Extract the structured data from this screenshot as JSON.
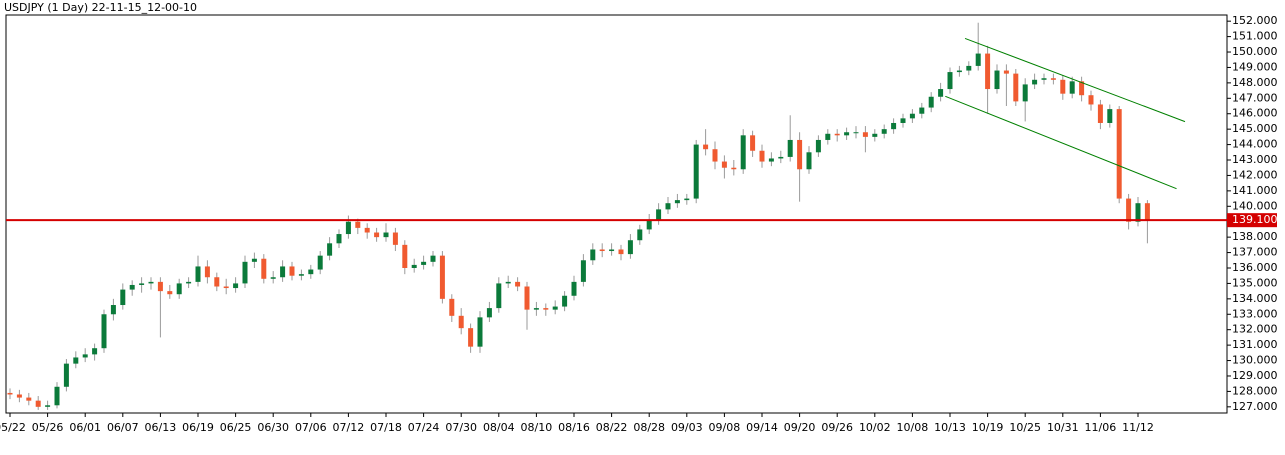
{
  "chart_data": {
    "type": "candlestick",
    "title": "USDJPY (1 Day) 22-11-15_12-00-10",
    "up_color": "#0b7a3a",
    "down_color": "#f05a30",
    "wick_color": "#9a9a9a",
    "categories": [
      "05/22",
      null,
      null,
      null,
      "05/26",
      null,
      null,
      null,
      "06/01",
      null,
      null,
      null,
      "06/07",
      null,
      null,
      null,
      "06/13",
      null,
      null,
      null,
      "06/19",
      null,
      null,
      null,
      "06/25",
      null,
      null,
      null,
      "06/30",
      null,
      null,
      null,
      "07/06",
      null,
      null,
      null,
      "07/12",
      null,
      null,
      null,
      "07/18",
      null,
      null,
      null,
      "07/24",
      null,
      null,
      null,
      "07/30",
      null,
      null,
      null,
      "08/04",
      null,
      null,
      null,
      "08/10",
      null,
      null,
      null,
      "08/16",
      null,
      null,
      null,
      "08/22",
      null,
      null,
      null,
      "08/28",
      null,
      null,
      null,
      "09/03",
      null,
      null,
      null,
      "09/08",
      null,
      null,
      null,
      "09/14",
      null,
      null,
      null,
      "09/20",
      null,
      null,
      null,
      "09/26",
      null,
      null,
      null,
      "10/02",
      null,
      null,
      null,
      "10/08",
      null,
      null,
      null,
      "10/13",
      null,
      null,
      null,
      "10/19",
      null,
      null,
      null,
      "10/25",
      null,
      null,
      null,
      "10/31",
      null,
      null,
      null,
      "11/06",
      null,
      null,
      null,
      "11/12",
      null
    ],
    "ohlc": [
      [
        127.9,
        128.2,
        127.5,
        127.8
      ],
      [
        127.8,
        128.1,
        127.3,
        127.6
      ],
      [
        127.6,
        127.9,
        127.1,
        127.4
      ],
      [
        127.4,
        127.7,
        126.8,
        127.0
      ],
      [
        127.0,
        127.4,
        126.8,
        127.1
      ],
      [
        127.1,
        128.6,
        126.9,
        128.3
      ],
      [
        128.3,
        130.1,
        128.0,
        129.8
      ],
      [
        129.8,
        130.6,
        129.5,
        130.2
      ],
      [
        130.2,
        130.8,
        129.9,
        130.4
      ],
      [
        130.4,
        131.1,
        130.0,
        130.8
      ],
      [
        130.8,
        133.3,
        130.5,
        133.0
      ],
      [
        133.0,
        134.0,
        132.6,
        133.6
      ],
      [
        133.6,
        135.0,
        133.3,
        134.6
      ],
      [
        134.6,
        135.2,
        134.2,
        134.9
      ],
      [
        134.9,
        135.4,
        134.4,
        135.0
      ],
      [
        135.0,
        135.4,
        134.6,
        135.1
      ],
      [
        135.1,
        135.4,
        131.5,
        134.5
      ],
      [
        134.5,
        134.9,
        134.0,
        134.3
      ],
      [
        134.3,
        135.3,
        134.0,
        135.0
      ],
      [
        135.0,
        135.4,
        134.7,
        135.1
      ],
      [
        135.1,
        136.8,
        134.8,
        136.1
      ],
      [
        136.1,
        136.5,
        135.0,
        135.4
      ],
      [
        135.4,
        135.7,
        134.5,
        134.8
      ],
      [
        134.8,
        135.3,
        134.3,
        134.7
      ],
      [
        134.7,
        135.4,
        134.4,
        135.0
      ],
      [
        135.0,
        136.8,
        134.7,
        136.4
      ],
      [
        136.4,
        137.0,
        136.0,
        136.6
      ],
      [
        136.6,
        136.9,
        135.0,
        135.3
      ],
      [
        135.3,
        135.8,
        135.0,
        135.4
      ],
      [
        135.4,
        136.5,
        135.1,
        136.1
      ],
      [
        136.1,
        136.4,
        135.2,
        135.5
      ],
      [
        135.5,
        135.9,
        135.2,
        135.6
      ],
      [
        135.6,
        136.2,
        135.3,
        135.9
      ],
      [
        135.9,
        137.1,
        135.6,
        136.8
      ],
      [
        136.8,
        138.0,
        136.5,
        137.6
      ],
      [
        137.6,
        138.5,
        137.3,
        138.2
      ],
      [
        138.2,
        139.4,
        137.9,
        139.0
      ],
      [
        139.0,
        139.2,
        138.2,
        138.6
      ],
      [
        138.6,
        138.9,
        137.9,
        138.3
      ],
      [
        138.3,
        138.6,
        137.7,
        138.0
      ],
      [
        138.0,
        138.9,
        137.7,
        138.3
      ],
      [
        138.3,
        138.6,
        137.1,
        137.5
      ],
      [
        137.5,
        137.8,
        135.6,
        136.0
      ],
      [
        136.0,
        136.6,
        135.7,
        136.2
      ],
      [
        136.2,
        136.8,
        135.9,
        136.4
      ],
      [
        136.4,
        137.1,
        136.1,
        136.8
      ],
      [
        136.8,
        137.1,
        133.7,
        134.0
      ],
      [
        134.0,
        134.3,
        132.5,
        132.9
      ],
      [
        132.9,
        133.4,
        131.7,
        132.1
      ],
      [
        132.1,
        132.4,
        130.5,
        130.9
      ],
      [
        130.9,
        133.2,
        130.5,
        132.8
      ],
      [
        132.8,
        133.8,
        132.5,
        133.4
      ],
      [
        133.4,
        135.4,
        133.1,
        135.0
      ],
      [
        135.0,
        135.5,
        134.7,
        135.1
      ],
      [
        135.1,
        135.4,
        134.5,
        134.8
      ],
      [
        134.8,
        135.1,
        132.0,
        133.3
      ],
      [
        133.3,
        133.8,
        132.9,
        133.4
      ],
      [
        133.4,
        133.7,
        132.9,
        133.3
      ],
      [
        133.3,
        133.9,
        133.0,
        133.5
      ],
      [
        133.5,
        134.5,
        133.2,
        134.2
      ],
      [
        134.2,
        135.5,
        133.9,
        135.1
      ],
      [
        135.1,
        136.9,
        134.8,
        136.5
      ],
      [
        136.5,
        137.6,
        136.2,
        137.2
      ],
      [
        137.2,
        137.6,
        136.7,
        137.1
      ],
      [
        137.1,
        137.6,
        136.8,
        137.2
      ],
      [
        137.2,
        137.5,
        136.5,
        136.9
      ],
      [
        136.9,
        138.2,
        136.6,
        137.8
      ],
      [
        137.8,
        138.8,
        137.5,
        138.5
      ],
      [
        138.5,
        139.5,
        138.2,
        139.1
      ],
      [
        139.1,
        140.2,
        138.8,
        139.8
      ],
      [
        139.8,
        140.6,
        139.5,
        140.2
      ],
      [
        140.2,
        140.8,
        139.9,
        140.4
      ],
      [
        140.4,
        140.8,
        140.1,
        140.5
      ],
      [
        140.5,
        144.3,
        140.2,
        144.0
      ],
      [
        144.0,
        145.0,
        143.3,
        143.7
      ],
      [
        143.7,
        144.2,
        142.4,
        142.9
      ],
      [
        142.9,
        143.3,
        141.8,
        142.5
      ],
      [
        142.5,
        143.0,
        142.0,
        142.4
      ],
      [
        142.4,
        145.0,
        142.1,
        144.6
      ],
      [
        144.6,
        144.9,
        143.2,
        143.6
      ],
      [
        143.6,
        144.0,
        142.5,
        142.9
      ],
      [
        142.9,
        143.5,
        142.6,
        143.1
      ],
      [
        143.1,
        143.6,
        142.8,
        143.2
      ],
      [
        143.2,
        145.9,
        142.9,
        144.3
      ],
      [
        144.3,
        144.8,
        140.3,
        142.4
      ],
      [
        142.4,
        143.9,
        142.1,
        143.5
      ],
      [
        143.5,
        144.6,
        143.2,
        144.3
      ],
      [
        144.3,
        145.0,
        144.0,
        144.7
      ],
      [
        144.7,
        145.0,
        144.2,
        144.6
      ],
      [
        144.6,
        145.1,
        144.3,
        144.8
      ],
      [
        144.8,
        145.2,
        144.4,
        144.8
      ],
      [
        144.8,
        145.2,
        143.5,
        144.5
      ],
      [
        144.5,
        145.0,
        144.2,
        144.7
      ],
      [
        144.7,
        145.3,
        144.4,
        145.0
      ],
      [
        145.0,
        145.7,
        144.7,
        145.4
      ],
      [
        145.4,
        146.0,
        145.1,
        145.7
      ],
      [
        145.7,
        146.3,
        145.4,
        146.0
      ],
      [
        146.0,
        146.7,
        145.7,
        146.4
      ],
      [
        146.4,
        147.4,
        146.1,
        147.1
      ],
      [
        147.1,
        148.0,
        146.8,
        147.6
      ],
      [
        147.6,
        149.0,
        147.3,
        148.7
      ],
      [
        148.7,
        149.1,
        148.4,
        148.8
      ],
      [
        148.8,
        149.4,
        148.5,
        149.1
      ],
      [
        149.1,
        151.9,
        148.8,
        149.9
      ],
      [
        149.9,
        150.4,
        146.0,
        147.6
      ],
      [
        147.6,
        149.2,
        147.3,
        148.8
      ],
      [
        148.8,
        149.2,
        146.5,
        148.6
      ],
      [
        148.6,
        148.9,
        146.5,
        146.8
      ],
      [
        146.8,
        148.3,
        145.5,
        147.9
      ],
      [
        147.9,
        148.6,
        147.6,
        148.2
      ],
      [
        148.2,
        148.6,
        147.9,
        148.3
      ],
      [
        148.3,
        148.6,
        147.9,
        148.2
      ],
      [
        148.2,
        148.5,
        146.9,
        147.3
      ],
      [
        147.3,
        148.4,
        147.0,
        148.1
      ],
      [
        148.1,
        148.4,
        146.8,
        147.2
      ],
      [
        147.2,
        147.5,
        146.2,
        146.6
      ],
      [
        146.6,
        146.9,
        145.0,
        145.4
      ],
      [
        145.4,
        146.6,
        145.1,
        146.3
      ],
      [
        146.3,
        146.5,
        140.2,
        140.5
      ],
      [
        140.5,
        140.8,
        138.5,
        139.0
      ],
      [
        139.0,
        140.6,
        138.7,
        140.2
      ],
      [
        140.2,
        140.4,
        137.6,
        139.1
      ]
    ],
    "ylim": [
      126.6,
      152.4
    ],
    "yticks": [
      {
        "value": 127,
        "label": "127.000"
      },
      {
        "value": 128,
        "label": "128.000"
      },
      {
        "value": 129,
        "label": "129.000"
      },
      {
        "value": 130,
        "label": "130.000"
      },
      {
        "value": 131,
        "label": "131.000"
      },
      {
        "value": 132,
        "label": "132.000"
      },
      {
        "value": 133,
        "label": "133.000"
      },
      {
        "value": 134,
        "label": "134.000"
      },
      {
        "value": 135,
        "label": "135.000"
      },
      {
        "value": 136,
        "label": "136.000"
      },
      {
        "value": 137,
        "label": "137.000"
      },
      {
        "value": 138,
        "label": "138.000"
      },
      {
        "value": 139,
        "label": "139.000"
      },
      {
        "value": 140,
        "label": "140.000"
      },
      {
        "value": 141,
        "label": "141.000"
      },
      {
        "value": 142,
        "label": "142.000"
      },
      {
        "value": 143,
        "label": "143.000"
      },
      {
        "value": 144,
        "label": "144.000"
      },
      {
        "value": 145,
        "label": "145.000"
      },
      {
        "value": 146,
        "label": "146.000"
      },
      {
        "value": 147,
        "label": "147.000"
      },
      {
        "value": 148,
        "label": "148.000"
      },
      {
        "value": 149,
        "label": "149.000"
      },
      {
        "value": 150,
        "label": "150.000"
      },
      {
        "value": 151,
        "label": "151.000"
      },
      {
        "value": 152,
        "label": "152.000"
      }
    ],
    "current_price": {
      "value": 139.1,
      "label": "139.100",
      "color": "#d40000"
    },
    "trendlines": [
      {
        "color": "#008000",
        "points": [
          [
            101.6,
            150.88
          ],
          [
            125,
            145.49
          ]
        ]
      },
      {
        "color": "#008000",
        "points": [
          [
            99.5,
            147.13
          ],
          [
            124.1,
            141.14
          ]
        ]
      }
    ]
  }
}
